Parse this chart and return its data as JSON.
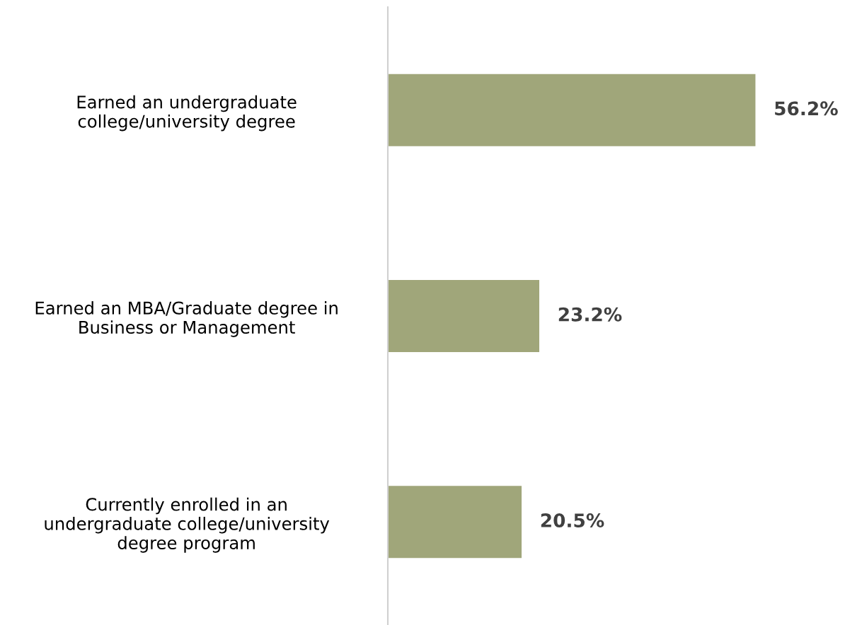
{
  "chart_data": {
    "type": "bar",
    "orientation": "horizontal",
    "categories": [
      "Earned an undergraduate\ncollege/university degree",
      "Earned an MBA/Graduate degree in\nBusiness or Management",
      "Currently enrolled in an\nundergraduate college/university\ndegree program"
    ],
    "values": [
      56.2,
      23.2,
      20.5
    ],
    "value_labels": [
      "56.2%",
      "23.2%",
      "20.5%"
    ],
    "color": "#a0a67a",
    "grid": false,
    "legend": false
  }
}
